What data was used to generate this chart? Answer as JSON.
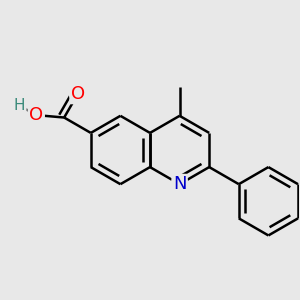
{
  "background_color": "#e8e8e8",
  "bond_color": "#000000",
  "bond_width": 1.8,
  "atom_colors": {
    "N": "#0000cc",
    "O_carbonyl": "#ff0000",
    "O_hydroxyl": "#ff0000",
    "H": "#3a8a7a"
  },
  "font_size_atoms": 13,
  "figsize": [
    3.0,
    3.0
  ],
  "dpi": 100
}
